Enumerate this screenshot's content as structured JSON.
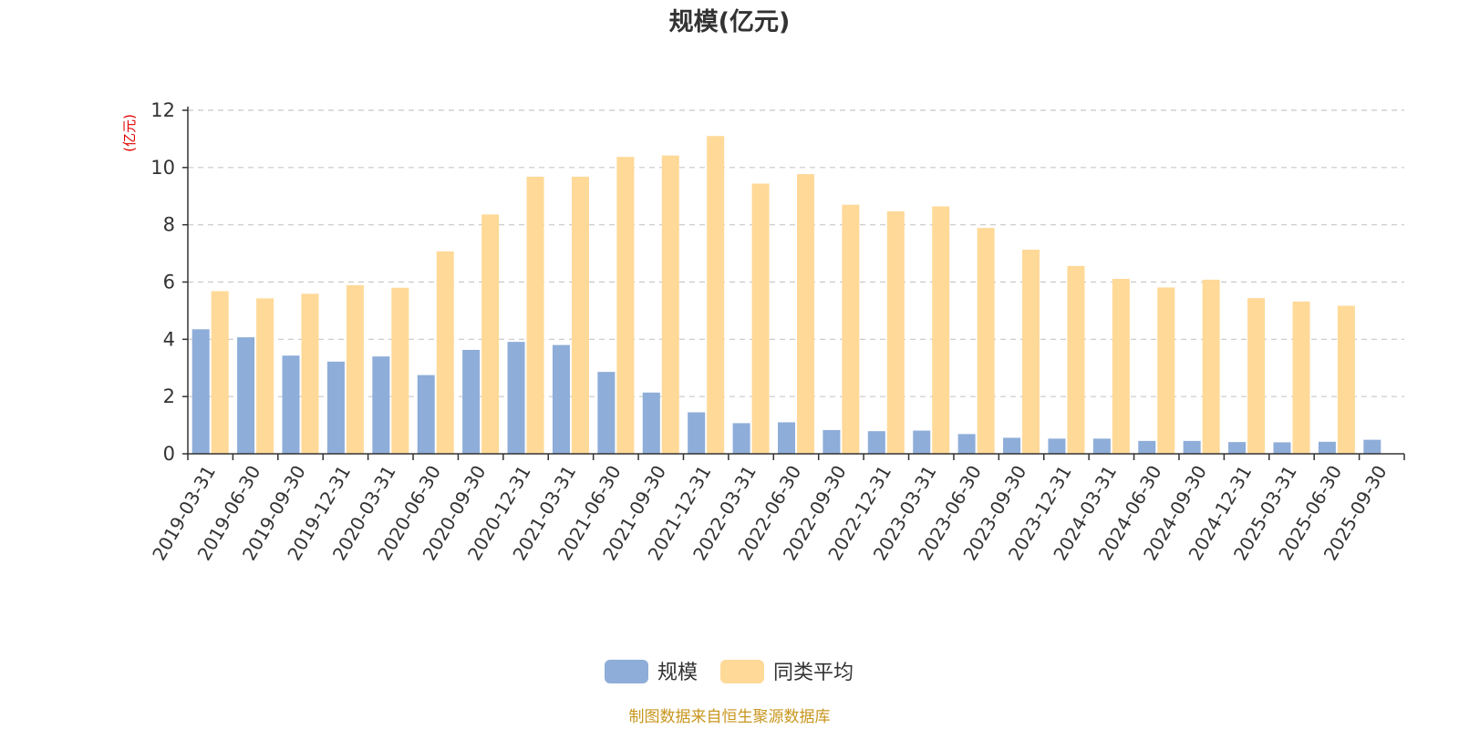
{
  "chart_data": {
    "type": "bar",
    "title": "规模(亿元)",
    "ylabel": "(亿元)",
    "ylim": [
      0,
      12
    ],
    "yticks": [
      "0",
      "2",
      "4",
      "6",
      "8",
      "10",
      "12"
    ],
    "grid": true,
    "legend_position": "bottom",
    "categories": [
      "2019-03-31",
      "2019-06-30",
      "2019-09-30",
      "2019-12-31",
      "2020-03-31",
      "2020-06-30",
      "2020-09-30",
      "2020-12-31",
      "2021-03-31",
      "2021-06-30",
      "2021-09-30",
      "2021-12-31",
      "2022-03-31",
      "2022-06-30",
      "2022-09-30",
      "2022-12-31",
      "2023-03-31",
      "2023-06-30",
      "2023-09-30",
      "2023-12-31",
      "2024-03-31",
      "2024-06-30",
      "2024-09-30",
      "2024-12-31",
      "2025-03-31",
      "2025-06-30",
      "2025-09-30"
    ],
    "series": [
      {
        "name": "规模",
        "color": "#8eadd9",
        "values": [
          4.35,
          4.07,
          3.43,
          3.22,
          3.4,
          2.75,
          3.63,
          3.91,
          3.8,
          2.86,
          2.14,
          1.45,
          1.07,
          1.1,
          0.83,
          0.79,
          0.81,
          0.69,
          0.56,
          0.53,
          0.53,
          0.45,
          0.45,
          0.41,
          0.4,
          0.42,
          0.49
        ]
      },
      {
        "name": "同类平均",
        "color": "#ffd998",
        "values": [
          5.68,
          5.43,
          5.59,
          5.89,
          5.8,
          7.07,
          8.36,
          9.68,
          9.68,
          10.37,
          10.42,
          11.1,
          9.44,
          9.77,
          8.7,
          8.47,
          8.64,
          7.89,
          7.13,
          6.56,
          6.11,
          5.81,
          6.08,
          5.44,
          5.32,
          5.17,
          null
        ]
      }
    ]
  },
  "source_text": "制图数据来自恒生聚源数据库"
}
